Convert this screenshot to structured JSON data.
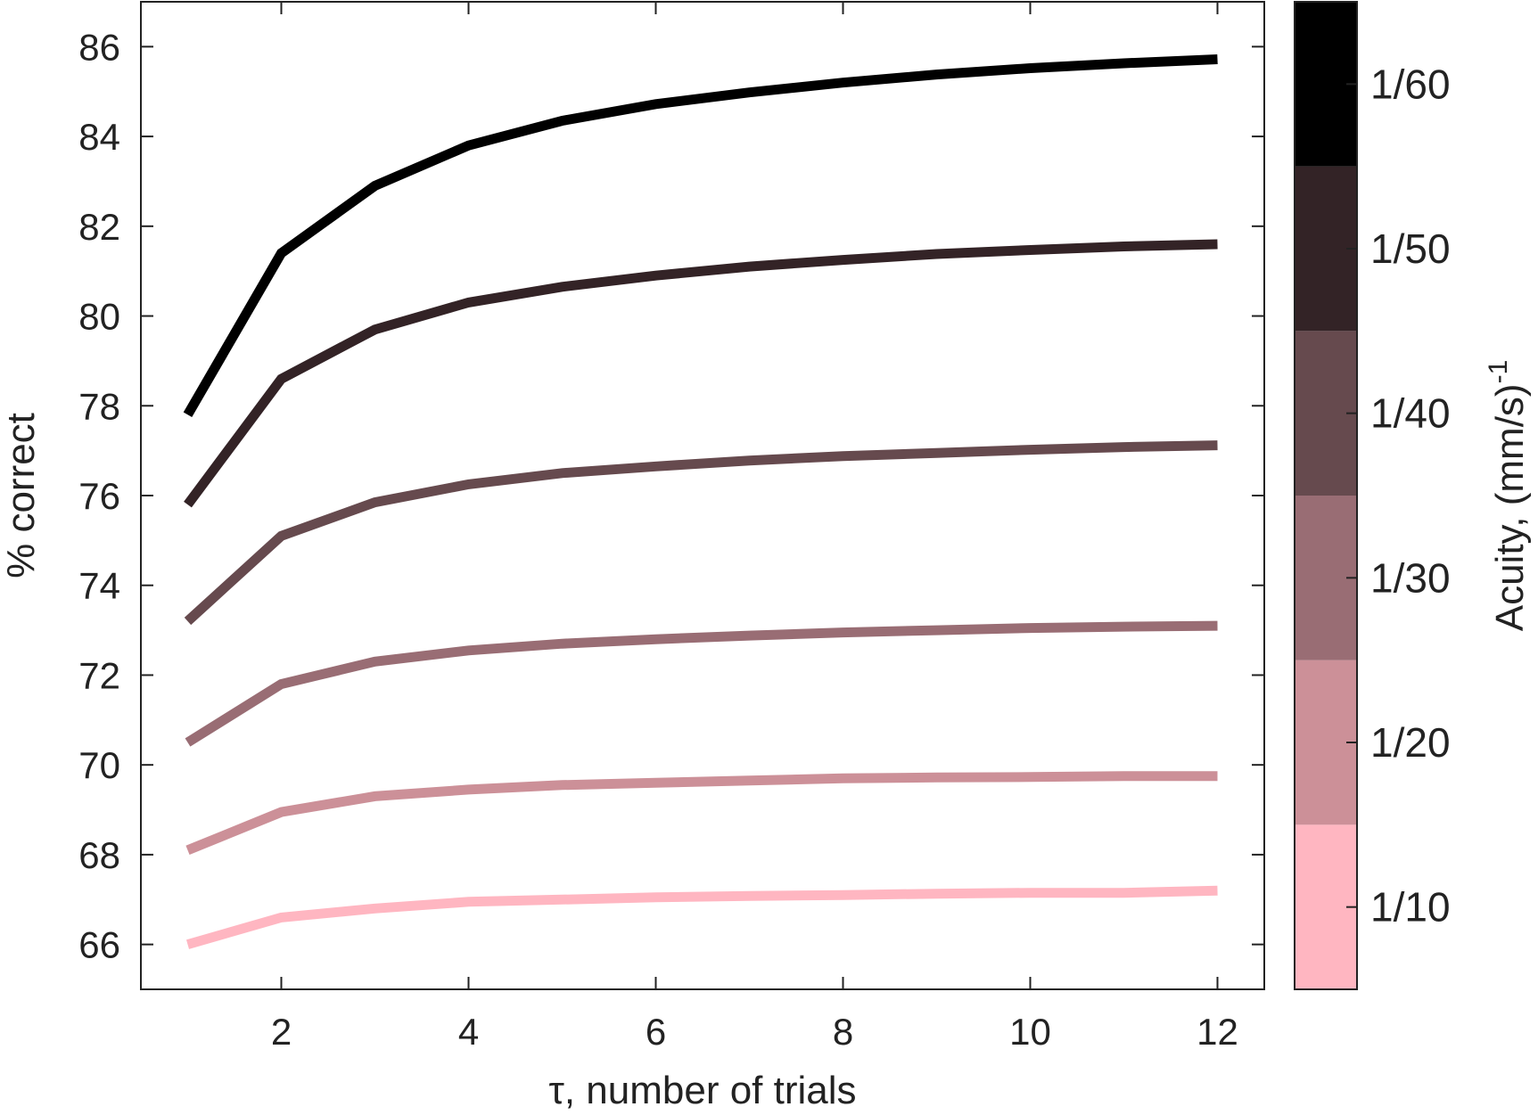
{
  "chart_data": {
    "type": "line",
    "xlabel": "τ, number of trials",
    "ylabel": "% correct",
    "xlim": [
      0.5,
      12.5
    ],
    "ylim": [
      65,
      87
    ],
    "xticks": [
      2,
      4,
      6,
      8,
      10,
      12
    ],
    "yticks": [
      66,
      68,
      70,
      72,
      74,
      76,
      78,
      80,
      82,
      84,
      86
    ],
    "x": [
      1,
      2,
      3,
      4,
      5,
      6,
      7,
      8,
      9,
      10,
      11,
      12
    ],
    "series": [
      {
        "acuity": "1/10",
        "color": "#ffb6c1",
        "values": [
          66.0,
          66.6,
          66.8,
          66.95,
          67.0,
          67.05,
          67.08,
          67.1,
          67.13,
          67.15,
          67.15,
          67.2
        ]
      },
      {
        "acuity": "1/20",
        "color": "#cc9098",
        "values": [
          68.1,
          68.95,
          69.3,
          69.45,
          69.55,
          69.6,
          69.65,
          69.7,
          69.72,
          69.73,
          69.75,
          69.75
        ]
      },
      {
        "acuity": "1/30",
        "color": "#996d74",
        "values": [
          70.5,
          71.8,
          72.3,
          72.55,
          72.7,
          72.8,
          72.88,
          72.95,
          73.0,
          73.05,
          73.08,
          73.1
        ]
      },
      {
        "acuity": "1/40",
        "color": "#664a4e",
        "values": [
          73.2,
          75.1,
          75.85,
          76.25,
          76.5,
          76.65,
          76.78,
          76.88,
          76.95,
          77.02,
          77.08,
          77.12
        ]
      },
      {
        "acuity": "1/50",
        "color": "#332326",
        "values": [
          75.8,
          78.6,
          79.7,
          80.3,
          80.65,
          80.9,
          81.1,
          81.25,
          81.38,
          81.47,
          81.55,
          81.6
        ]
      },
      {
        "acuity": "1/60",
        "color": "#000000",
        "values": [
          77.8,
          81.4,
          82.9,
          83.8,
          84.35,
          84.72,
          84.98,
          85.2,
          85.38,
          85.52,
          85.63,
          85.72
        ]
      }
    ],
    "colorbar": {
      "label": "Acuity, (mm/s)",
      "label_superscript": "-1",
      "ticks": [
        "1/10",
        "1/20",
        "1/30",
        "1/40",
        "1/50",
        "1/60"
      ],
      "colors": [
        "#ffb6c1",
        "#cc9098",
        "#996d74",
        "#664a4e",
        "#332326",
        "#000000"
      ]
    },
    "grid": false,
    "legend": "colorbar-right"
  }
}
